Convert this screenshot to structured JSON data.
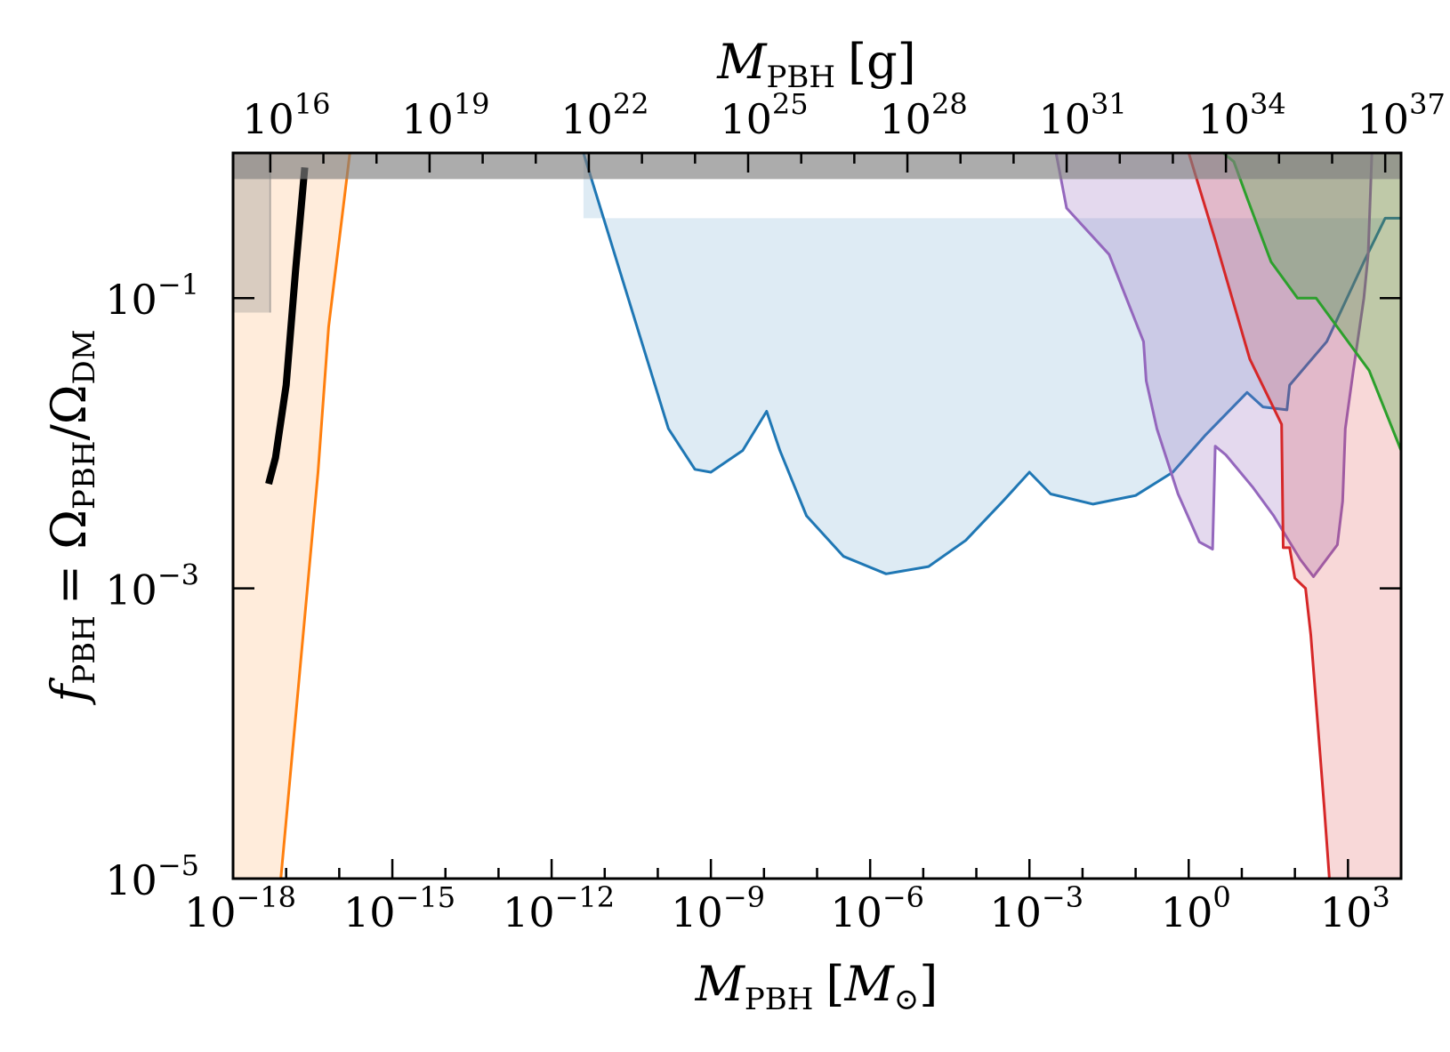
{
  "colors": {
    "blue": "#1f77b4",
    "orange": "#ff7f0e",
    "green": "#2ca02c",
    "red": "#d62728",
    "purple": "#9467bd",
    "black": "#000000",
    "gray": "#808080"
  },
  "chart_data": {
    "type": "area",
    "title": "",
    "xlabel": {
      "sym": "M",
      "sub": "PBH",
      "unit_pre": "[",
      "unit": "M",
      "unit_sub": "⊙",
      "unit_post": "]"
    },
    "x2label": {
      "sym": "M",
      "sub": "PBH",
      "unit": "[g]"
    },
    "ylabel": {
      "sym": "f",
      "sub": "PBH",
      "eq": "= Ω",
      "sub2": "PBH",
      "slash": "/Ω",
      "sub3": "DM"
    },
    "xscale": "log",
    "yscale": "log",
    "xlim_log10_msun": [
      -18,
      4.0
    ],
    "ylim_log10": [
      -5,
      0
    ],
    "x_ticks": [
      {
        "log": -18,
        "base": "10",
        "exp": "−18"
      },
      {
        "log": -15,
        "base": "10",
        "exp": "−15"
      },
      {
        "log": -12,
        "base": "10",
        "exp": "−12"
      },
      {
        "log": -9,
        "base": "10",
        "exp": "−9"
      },
      {
        "log": -6,
        "base": "10",
        "exp": "−6"
      },
      {
        "log": -3,
        "base": "10",
        "exp": "−3"
      },
      {
        "log": 0,
        "base": "10",
        "exp": "0"
      },
      {
        "log": 3,
        "base": "10",
        "exp": "3"
      }
    ],
    "x2_ticks": [
      {
        "log_g": 16,
        "base": "10",
        "exp": "16"
      },
      {
        "log_g": 19,
        "base": "10",
        "exp": "19"
      },
      {
        "log_g": 22,
        "base": "10",
        "exp": "22"
      },
      {
        "log_g": 25,
        "base": "10",
        "exp": "25"
      },
      {
        "log_g": 28,
        "base": "10",
        "exp": "28"
      },
      {
        "log_g": 31,
        "base": "10",
        "exp": "31"
      },
      {
        "log_g": 34,
        "base": "10",
        "exp": "34"
      },
      {
        "log_g": 37,
        "base": "10",
        "exp": "37"
      }
    ],
    "y_ticks": [
      {
        "log": -1,
        "base": "10",
        "exp": "−1"
      },
      {
        "log": -3,
        "base": "10",
        "exp": "−3"
      },
      {
        "log": -5,
        "base": "10",
        "exp": "−5"
      }
    ],
    "gray_band_log10_f": [
      -0.18,
      0
    ],
    "series": [
      {
        "color": "orange",
        "fill": true,
        "fill_opacity": 0.15,
        "fill_to": "left",
        "points": [
          [
            -17.1,
            -5
          ],
          [
            -16.4,
            -2.2
          ],
          [
            -16.2,
            -1.2
          ],
          [
            -15.8,
            0
          ]
        ]
      },
      {
        "color": "gray",
        "fill": true,
        "fill_opacity": 0.3,
        "fill_to": "left",
        "stroke_width": 2,
        "points": [
          [
            -17.3,
            -1.1
          ],
          [
            -17.3,
            0
          ]
        ]
      },
      {
        "color": "black",
        "fill": false,
        "stroke_width": 8,
        "points": [
          [
            -17.33,
            -2.28
          ],
          [
            -17.2,
            -2.1
          ],
          [
            -17.0,
            -1.6
          ],
          [
            -16.82,
            -0.8
          ],
          [
            -16.65,
            -0.1
          ]
        ]
      },
      {
        "color": "blue",
        "fill": true,
        "fill_opacity": 0.15,
        "points": [
          [
            -11.4,
            0
          ],
          [
            -9.8,
            -1.9
          ],
          [
            -9.3,
            -2.18
          ],
          [
            -9.0,
            -2.2
          ],
          [
            -8.4,
            -2.05
          ],
          [
            -7.95,
            -1.78
          ],
          [
            -7.7,
            -2.05
          ],
          [
            -7.2,
            -2.5
          ],
          [
            -6.5,
            -2.78
          ],
          [
            -5.7,
            -2.9
          ],
          [
            -4.9,
            -2.85
          ],
          [
            -4.2,
            -2.67
          ],
          [
            -3.5,
            -2.4
          ],
          [
            -3.0,
            -2.2
          ],
          [
            -2.6,
            -2.35
          ],
          [
            -1.8,
            -2.42
          ],
          [
            -1.0,
            -2.36
          ],
          [
            -0.3,
            -2.2
          ],
          [
            0.3,
            -1.95
          ],
          [
            1.1,
            -1.65
          ],
          [
            1.4,
            -1.75
          ],
          [
            1.85,
            -1.77
          ],
          [
            1.9,
            -1.6
          ],
          [
            2.6,
            -1.3
          ],
          [
            3.3,
            -0.75
          ],
          [
            3.7,
            -0.45
          ],
          [
            4.0,
            -0.45
          ]
        ]
      },
      {
        "color": "purple",
        "fill": true,
        "fill_opacity": 0.25,
        "points": [
          [
            -2.5,
            0
          ],
          [
            -2.3,
            -0.38
          ],
          [
            -1.5,
            -0.7
          ],
          [
            -0.85,
            -1.3
          ],
          [
            -0.8,
            -1.57
          ],
          [
            -0.6,
            -1.9
          ],
          [
            -0.2,
            -2.35
          ],
          [
            0.2,
            -2.68
          ],
          [
            0.45,
            -2.73
          ],
          [
            0.5,
            -2.02
          ],
          [
            0.7,
            -2.08
          ],
          [
            1.2,
            -2.3
          ],
          [
            1.6,
            -2.5
          ],
          [
            2.1,
            -2.8
          ],
          [
            2.35,
            -2.92
          ],
          [
            2.8,
            -2.7
          ],
          [
            2.9,
            -2.4
          ],
          [
            2.95,
            -1.9
          ],
          [
            3.1,
            -1.5
          ],
          [
            3.3,
            -1.0
          ],
          [
            3.38,
            -0.7
          ],
          [
            3.45,
            0
          ]
        ]
      },
      {
        "color": "red",
        "fill": true,
        "fill_opacity": 0.18,
        "points": [
          [
            0.0,
            0
          ],
          [
            0.5,
            -0.6
          ],
          [
            1.15,
            -1.42
          ],
          [
            1.75,
            -1.87
          ],
          [
            1.78,
            -2.72
          ],
          [
            1.9,
            -2.72
          ],
          [
            2.0,
            -2.93
          ],
          [
            2.2,
            -3.0
          ],
          [
            2.3,
            -3.32
          ],
          [
            2.55,
            -4.5
          ],
          [
            2.65,
            -5
          ],
          [
            4.0,
            -5
          ],
          [
            4.0,
            0
          ]
        ]
      },
      {
        "color": "green",
        "fill": true,
        "fill_opacity": 0.28,
        "points": [
          [
            0.65,
            0
          ],
          [
            0.85,
            -0.06
          ],
          [
            1.1,
            -0.31
          ],
          [
            1.55,
            -0.75
          ],
          [
            2.05,
            -1.0
          ],
          [
            2.4,
            -1.0
          ],
          [
            3.4,
            -1.5
          ],
          [
            4.0,
            -2.05
          ],
          [
            4.0,
            0
          ]
        ]
      }
    ]
  }
}
